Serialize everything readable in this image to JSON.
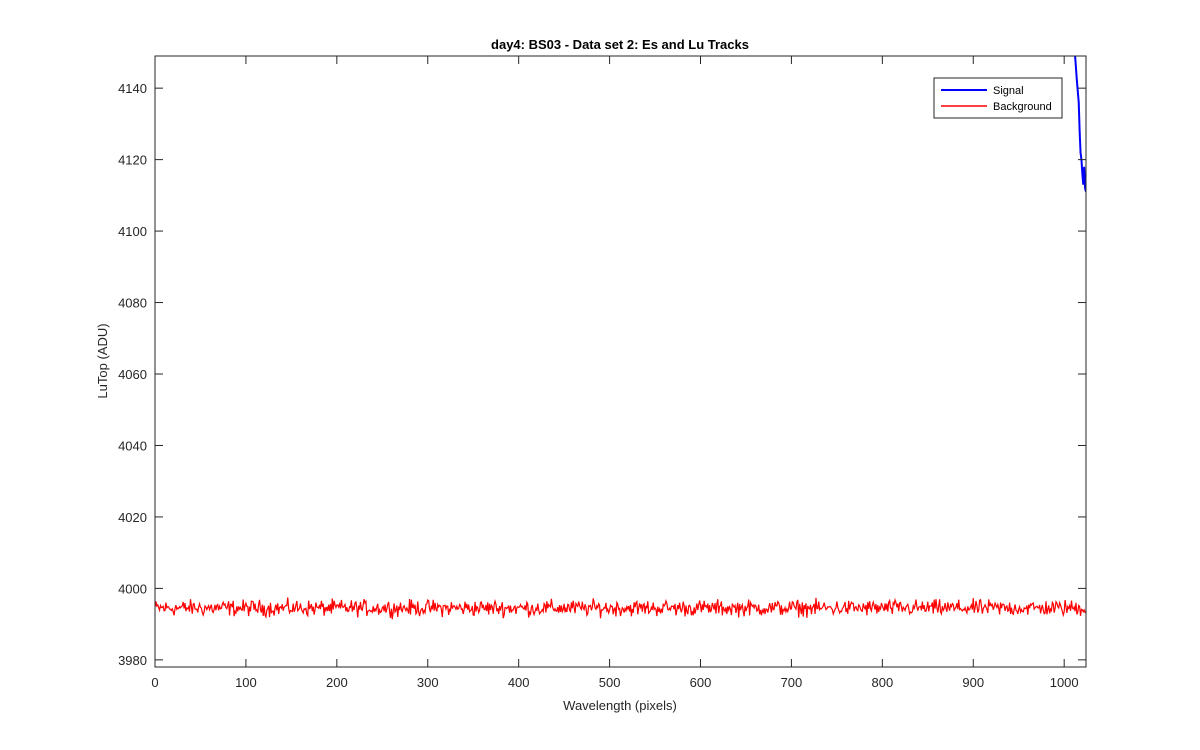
{
  "chart_data": {
    "type": "line",
    "title": "day4: BS03 - Data set 2: Es and Lu Tracks",
    "xlabel": "Wavelength (pixels)",
    "ylabel": "LuTop (ADU)",
    "xlim": [
      0,
      1024
    ],
    "ylim": [
      3978,
      4149
    ],
    "xticks": [
      0,
      100,
      200,
      300,
      400,
      500,
      600,
      700,
      800,
      900,
      1000
    ],
    "yticks": [
      3980,
      4000,
      4020,
      4040,
      4060,
      4080,
      4100,
      4120,
      4140
    ],
    "grid": false,
    "legend_position": "top-right",
    "series": [
      {
        "name": "Signal",
        "color": "#0000ff",
        "x": [
          1012,
          1014,
          1016,
          1017,
          1018,
          1019,
          1020,
          1021,
          1022,
          1023,
          1024
        ],
        "y": [
          4149,
          4142,
          4136,
          4128,
          4122,
          4120,
          4116,
          4113,
          4118,
          4112,
          4111
        ]
      },
      {
        "name": "Background",
        "color": "#ff0000",
        "x_start": 0,
        "x_end": 1024,
        "baseline": 3994.5,
        "noise_amplitude": 2.2,
        "y_range": [
          3988,
          3999
        ]
      }
    ]
  }
}
